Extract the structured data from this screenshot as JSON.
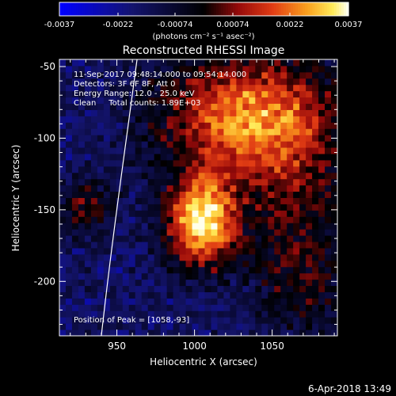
{
  "chart_data": {
    "type": "heatmap",
    "title": "Reconstructed RHESSI Image",
    "xlabel": "Heliocentric X (arcsec)",
    "ylabel": "Heliocentric Y (arcsec)",
    "xlim": [
      913,
      1092
    ],
    "ylim": [
      -238,
      -45
    ],
    "x_ticks": [
      950,
      1000,
      1050
    ],
    "y_ticks": [
      -50,
      -100,
      -150,
      -200
    ],
    "colorbar": {
      "ticks": [
        "-0.0037",
        "-0.0022",
        "-0.00074",
        "0.00074",
        "0.0022",
        "0.0037"
      ],
      "range": [
        -0.0037,
        0.0037
      ],
      "unit_label": "(photons cm⁻² s⁻¹ asec⁻²)"
    },
    "annotations": [
      "11-Sep-2017 09:48:14.000 to 09:54:14.000",
      "Detectors: 3F 6F 8F, Att 0",
      "Energy Range: 12.0 - 25.0 keV",
      "Clean     Total counts: 1.89E+03"
    ],
    "peak_label": "Position of Peak = [1058,-93]",
    "peak_position": [
      1058,
      -93
    ],
    "emission_regions": [
      {
        "cx": 1035,
        "cy": -85,
        "sx": 40,
        "sy": 30,
        "amp": 0.0026
      },
      {
        "cx": 1005,
        "cy": -158,
        "sx": 16,
        "sy": 22,
        "amp": 0.0032
      },
      {
        "cx": 1065,
        "cy": -150,
        "sx": 22,
        "sy": 40,
        "amp": 0.001
      },
      {
        "cx": 1070,
        "cy": -210,
        "sx": 20,
        "sy": 25,
        "amp": 0.0007
      },
      {
        "cx": 930,
        "cy": -148,
        "sx": 12,
        "sy": 14,
        "amp": 0.0012
      }
    ],
    "limb_curve": [
      [
        963,
        -45
      ],
      [
        955,
        -110
      ],
      [
        947,
        -170
      ],
      [
        940,
        -238
      ]
    ]
  },
  "footer": {
    "date": "6-Apr-2018 13:49"
  },
  "colors": {
    "background": "#000000",
    "text": "#ffffff",
    "colormap_negative": "#0000ff",
    "colormap_zero": "#000000",
    "colormap_positive_mid": "#d0301a",
    "colormap_positive_max": "#ffffee"
  }
}
